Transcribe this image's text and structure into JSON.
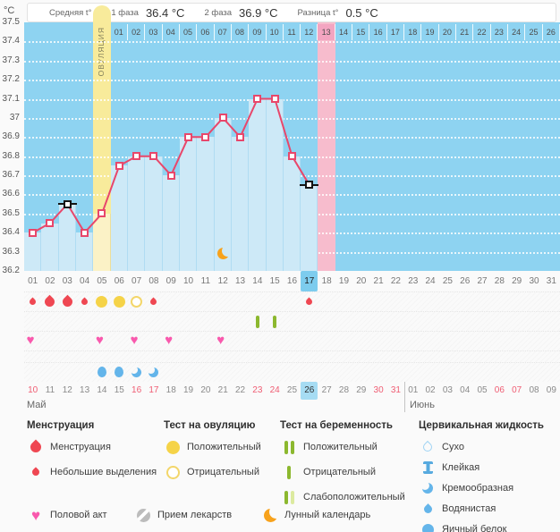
{
  "header": {
    "unit": "°C",
    "avg_label": "Средняя t°",
    "phase1_label": "1 фаза",
    "phase1_value": "36.4 °C",
    "phase2_label": "2 фаза",
    "phase2_value": "36.9 °C",
    "diff_label": "Разница t°",
    "diff_value": "0.5 °C"
  },
  "chart_data": {
    "type": "line",
    "ylabel": "°C",
    "ylim": [
      36.2,
      37.5
    ],
    "grid": true,
    "yticks": [
      "37.5",
      "37.4",
      "37.3",
      "37.2",
      "37.1",
      "37",
      "36.9",
      "36.8",
      "36.7",
      "36.6",
      "36.5",
      "36.4",
      "36.3",
      "36.2"
    ],
    "cycle_days": [
      "01",
      "02",
      "03",
      "04",
      "05",
      "06",
      "07",
      "08",
      "09",
      "10",
      "11",
      "12",
      "13",
      "14",
      "15",
      "16",
      "17",
      "18",
      "19",
      "20",
      "21",
      "22",
      "23",
      "24",
      "25",
      "26",
      "27",
      "28",
      "29",
      "30",
      "31"
    ],
    "current_cycle_day": 17,
    "dpo_numbers": [
      "01",
      "02",
      "03",
      "04",
      "05",
      "06",
      "07",
      "08",
      "09",
      "10",
      "11",
      "12",
      "13",
      "14",
      "15",
      "16",
      "17",
      "18",
      "19",
      "20",
      "21",
      "22",
      "23",
      "24",
      "25",
      "26"
    ],
    "dpo_highlight": "13",
    "ovulation_day": 5,
    "ovulation_label": "ОВУЛЯЦИЯ",
    "expected_period_day": 18,
    "temperatures": [
      {
        "day": 1,
        "value": 36.4
      },
      {
        "day": 2,
        "value": 36.45
      },
      {
        "day": 3,
        "value": 36.55,
        "alt_time": true
      },
      {
        "day": 4,
        "value": 36.4
      },
      {
        "day": 5,
        "value": 36.5
      },
      {
        "day": 6,
        "value": 36.75
      },
      {
        "day": 7,
        "value": 36.8
      },
      {
        "day": 8,
        "value": 36.8
      },
      {
        "day": 9,
        "value": 36.7
      },
      {
        "day": 10,
        "value": 36.9
      },
      {
        "day": 11,
        "value": 36.9
      },
      {
        "day": 12,
        "value": 37.0
      },
      {
        "day": 13,
        "value": 36.9
      },
      {
        "day": 14,
        "value": 37.1
      },
      {
        "day": 15,
        "value": 37.1
      },
      {
        "day": 16,
        "value": 36.8
      },
      {
        "day": 17,
        "value": 36.65,
        "alt_time": true
      }
    ],
    "moon_day": 12,
    "menstruation": [
      {
        "day": 1,
        "size": "small"
      },
      {
        "day": 2,
        "size": "big"
      },
      {
        "day": 3,
        "size": "big"
      },
      {
        "day": 4,
        "size": "small"
      },
      {
        "day": 8,
        "size": "small"
      },
      {
        "day": 17,
        "size": "small"
      }
    ],
    "ovulation_tests": [
      {
        "day": 5,
        "result": "positive"
      },
      {
        "day": 6,
        "result": "positive"
      },
      {
        "day": 7,
        "result": "negative"
      }
    ],
    "pregnancy_tests": [
      {
        "day": 14,
        "result": "negative"
      },
      {
        "day": 15,
        "result": "negative"
      }
    ],
    "intercourse_days": [
      1,
      5,
      7,
      9,
      12
    ],
    "cervical_fluid": [
      {
        "day": 5,
        "type": "eggwhite"
      },
      {
        "day": 6,
        "type": "eggwhite"
      },
      {
        "day": 7,
        "type": "creamy"
      },
      {
        "day": 8,
        "type": "creamy"
      }
    ],
    "dates": [
      {
        "d": "10",
        "w": 1
      },
      {
        "d": "11"
      },
      {
        "d": "12"
      },
      {
        "d": "13"
      },
      {
        "d": "14"
      },
      {
        "d": "15"
      },
      {
        "d": "16",
        "w": 1
      },
      {
        "d": "17",
        "w": 1
      },
      {
        "d": "18"
      },
      {
        "d": "19"
      },
      {
        "d": "20"
      },
      {
        "d": "21"
      },
      {
        "d": "22"
      },
      {
        "d": "23",
        "w": 1
      },
      {
        "d": "24",
        "w": 1
      },
      {
        "d": "25"
      },
      {
        "d": "26",
        "h": 1
      },
      {
        "d": "27"
      },
      {
        "d": "28"
      },
      {
        "d": "29"
      },
      {
        "d": "30",
        "w": 1
      },
      {
        "d": "31",
        "w": 1
      },
      {
        "d": "01"
      },
      {
        "d": "02"
      },
      {
        "d": "03"
      },
      {
        "d": "04"
      },
      {
        "d": "05"
      },
      {
        "d": "06",
        "w": 1
      },
      {
        "d": "07",
        "w": 1
      },
      {
        "d": "08"
      },
      {
        "d": "09"
      }
    ],
    "months": [
      {
        "label": "Май"
      },
      {
        "label": "Июнь"
      }
    ]
  },
  "legend": {
    "columns": [
      {
        "title": "Менструация",
        "items": [
          {
            "icon": "drop-big",
            "label": "Менструация"
          },
          {
            "icon": "drop-small",
            "label": "Небольшие выделения"
          }
        ]
      },
      {
        "title": "Тест на овуляцию",
        "items": [
          {
            "icon": "circle-filled",
            "label": "Положительный"
          },
          {
            "icon": "circle-outline",
            "label": "Отрицательный"
          }
        ]
      },
      {
        "title": "Тест на беременность",
        "items": [
          {
            "icon": "bars-positive",
            "label": "Положительный"
          },
          {
            "icon": "bar-negative",
            "label": "Отрицательный"
          },
          {
            "icon": "bars-weak",
            "label": "Слабоположительный"
          }
        ]
      },
      {
        "title": "Цервикальная жидкость",
        "items": [
          {
            "icon": "drop-outline",
            "label": "Сухо"
          },
          {
            "icon": "sticky",
            "label": "Клейкая"
          },
          {
            "icon": "creamy",
            "label": "Кремообразная"
          },
          {
            "icon": "watery",
            "label": "Водянистая"
          },
          {
            "icon": "eggwhite",
            "label": "Яичный белок"
          }
        ]
      }
    ],
    "bottom": [
      {
        "icon": "heart",
        "label": "Половой акт"
      },
      {
        "icon": "pill",
        "label": "Прием лекарств"
      },
      {
        "icon": "moon",
        "label": "Лунный календарь"
      }
    ]
  },
  "colors": {
    "accent": "#e8476b",
    "chart_bg": "#8ed3f1",
    "fill": "#cde9f7",
    "ovulation_band": "#f8eb9b",
    "period_band": "#f7bccd",
    "day_highlight": "#7dccee",
    "date_highlight": "#a6dcf3",
    "weekend": "#ef5d73",
    "test_green": "#8cb82f",
    "heart_pink": "#f959ad",
    "drop_red": "#ef4752",
    "fluid_blue": "#64b5ea",
    "moon_orange": "#f7a21c",
    "ovulation_yellow": "#f5d348"
  }
}
